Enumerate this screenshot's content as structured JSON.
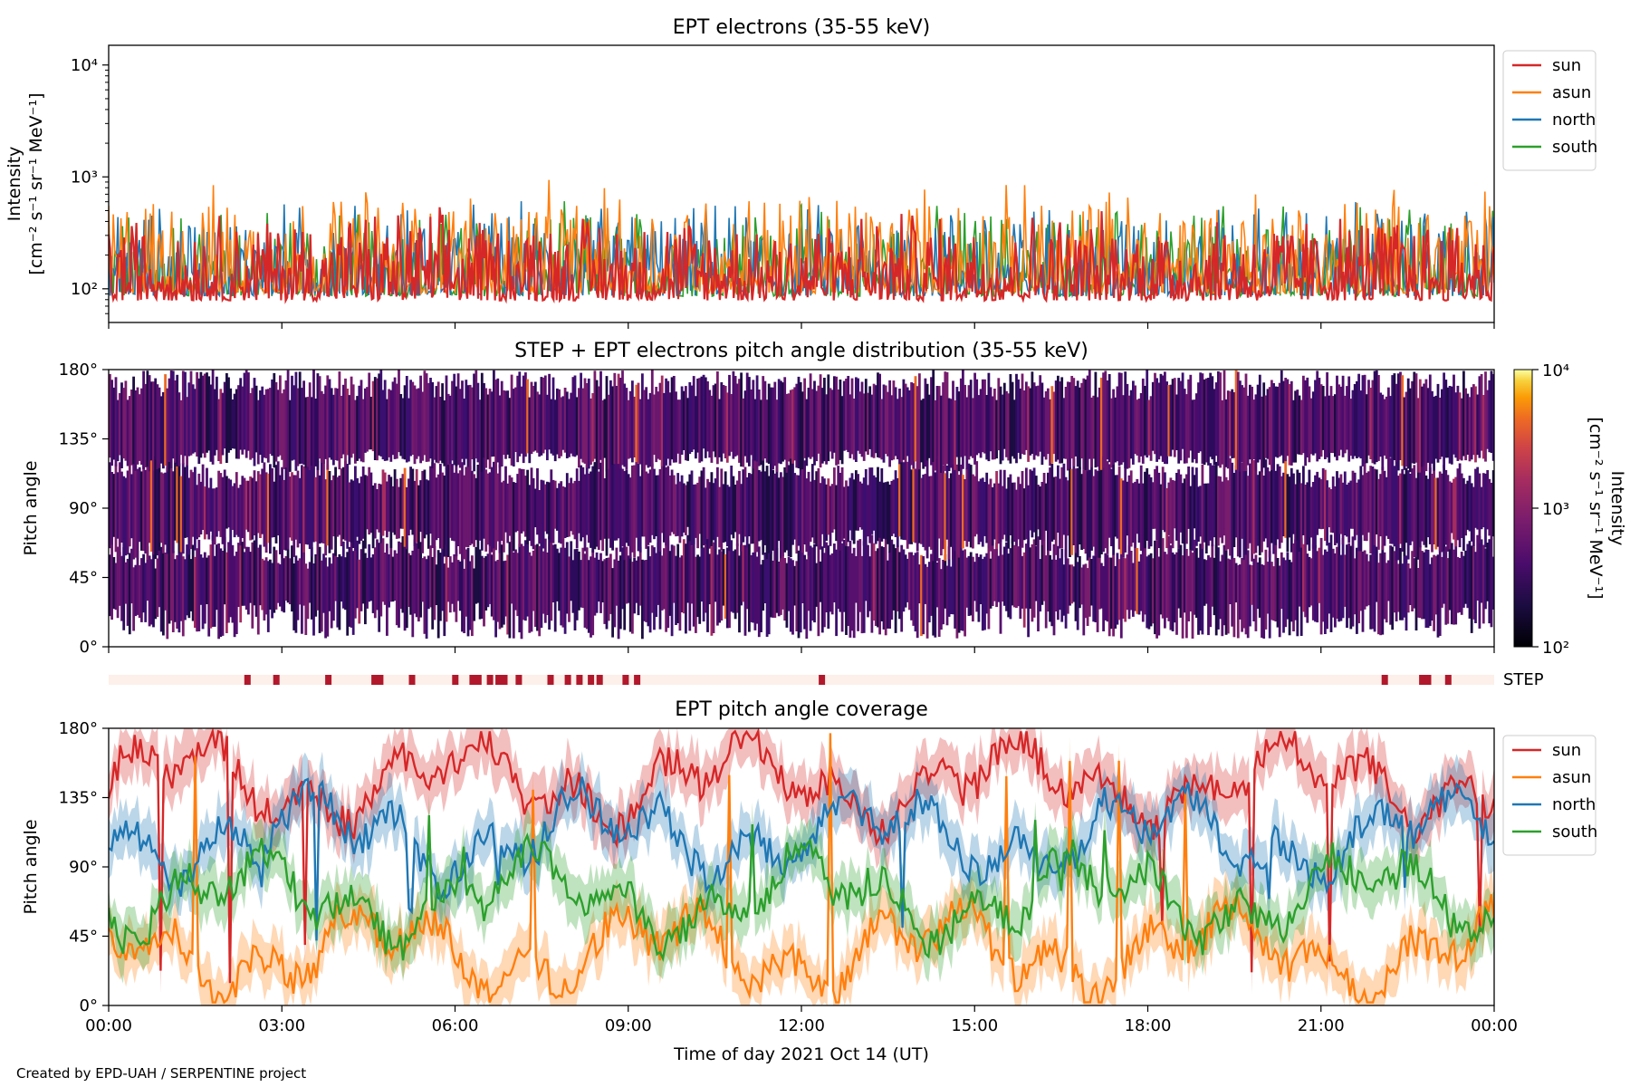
{
  "footer": {
    "credit": "Created by EPD-UAH / SERPENTINE project"
  },
  "chart_data": [
    {
      "type": "line",
      "title": "EPT electrons (35-55 keV)",
      "ylabel_line1": "Intensity",
      "ylabel_line2": "[cm⁻² s⁻¹ sr⁻¹ MeV⁻¹]",
      "yscale": "log",
      "ylim": [
        50,
        15000
      ],
      "yticks": [
        {
          "value": 100,
          "label": "10²"
        },
        {
          "value": 1000,
          "label": "10³"
        },
        {
          "value": 10000,
          "label": "10⁴"
        }
      ],
      "xlim": [
        "2021-10-14 00:00",
        "2021-10-15 00:00"
      ],
      "legend_position": "outside-right-top",
      "series": [
        {
          "name": "south",
          "color": "#2ca02c",
          "range": [
            60,
            650
          ]
        },
        {
          "name": "north",
          "color": "#1f77b4",
          "range": [
            60,
            700
          ]
        },
        {
          "name": "asun",
          "color": "#ff7f0e",
          "range": [
            60,
            1000
          ]
        },
        {
          "name": "sun",
          "color": "#d62728",
          "range": [
            55,
            600
          ]
        }
      ]
    },
    {
      "type": "heatmap",
      "title": "STEP + EPT electrons pitch angle distribution (35-55 keV)",
      "ylabel": "Pitch angle",
      "ylim": [
        0,
        180
      ],
      "yticks": [
        "0°",
        "45°",
        "90°",
        "135°",
        "180°"
      ],
      "colorbar": {
        "label_line1": "Intensity",
        "label_line2": "[cm⁻² s⁻¹ sr⁻¹ MeV⁻¹]",
        "scale": "log",
        "range": [
          100,
          10000
        ],
        "ticks": [
          "10²",
          "10³",
          "10⁴"
        ],
        "colormap": "inferno"
      }
    },
    {
      "type": "bar",
      "label": "STEP",
      "description_color_on": "#b2182b",
      "description_color_off": "#fdefe9",
      "active_hours": [
        2.35,
        2.85,
        3.75,
        4.55,
        4.65,
        5.2,
        5.95,
        6.25,
        6.35,
        6.55,
        6.7,
        6.8,
        7.05,
        7.6,
        7.9,
        8.1,
        8.3,
        8.45,
        8.9,
        9.1,
        12.3,
        22.05,
        22.7,
        22.8,
        23.15
      ]
    },
    {
      "type": "line",
      "title": "EPT pitch angle coverage",
      "ylabel": "Pitch angle",
      "xlabel": "Time of day 2021 Oct 14 (UT)",
      "ylim": [
        0,
        180
      ],
      "yticks": [
        "0°",
        "45°",
        "90°",
        "135°",
        "180°"
      ],
      "xticks": [
        "00:00",
        "03:00",
        "06:00",
        "09:00",
        "12:00",
        "15:00",
        "18:00",
        "21:00",
        "00:00"
      ],
      "legend_position": "outside-right-top",
      "series": [
        {
          "name": "sun",
          "color": "#d62728",
          "typical": 145
        },
        {
          "name": "asun",
          "color": "#ff7f0e",
          "typical": 35
        },
        {
          "name": "north",
          "color": "#1f77b4",
          "typical": 110
        },
        {
          "name": "south",
          "color": "#2ca02c",
          "typical": 70
        }
      ]
    }
  ]
}
